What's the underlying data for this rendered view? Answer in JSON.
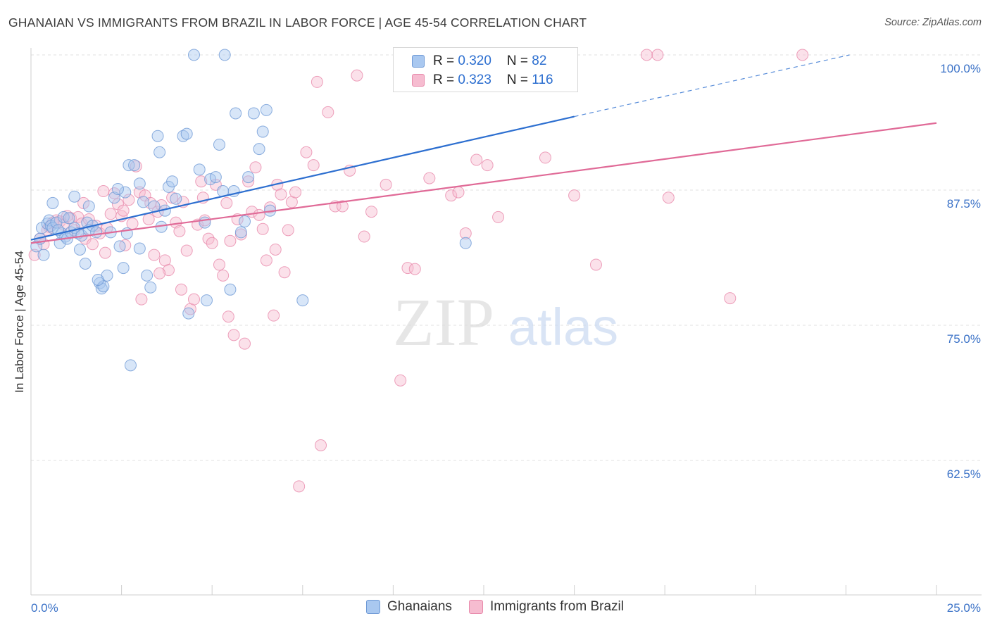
{
  "title": "GHANAIAN VS IMMIGRANTS FROM BRAZIL IN LABOR FORCE | AGE 45-54 CORRELATION CHART",
  "source": "Source: ZipAtlas.com",
  "watermark": {
    "zip": "ZIP",
    "atlas": "atlas"
  },
  "colors": {
    "blue_fill": "#a9c8f0",
    "blue_stroke": "#6f9ad6",
    "blue_line": "#2d6fd0",
    "pink_fill": "#f6bcd0",
    "pink_stroke": "#e88aab",
    "pink_line": "#e06a97",
    "axis_label": "#3b72c7",
    "grid": "#e2e2e2"
  },
  "legend": {
    "rows": [
      {
        "r_label": "R = ",
        "r_value": "0.320",
        "n_label": "N = ",
        "n_value": "82",
        "color": "blue"
      },
      {
        "r_label": "R = ",
        "r_value": "0.323",
        "n_label": "N = ",
        "n_value": "116",
        "color": "pink"
      }
    ]
  },
  "bottom_legend": [
    {
      "label": "Ghanaians",
      "color": "blue"
    },
    {
      "label": "Immigrants from Brazil",
      "color": "pink"
    }
  ],
  "chart_data": {
    "type": "scatter",
    "title": "GHANAIAN VS IMMIGRANTS FROM BRAZIL IN LABOR FORCE | AGE 45-54 CORRELATION CHART",
    "xlabel": "",
    "ylabel": "In Labor Force | Age 45-54",
    "xlim": [
      0,
      25
    ],
    "ylim": [
      51.5,
      101.5
    ],
    "x_tick_labels": [
      {
        "value": 0,
        "label": "0.0%"
      },
      {
        "value": 25,
        "label": "25.0%"
      }
    ],
    "y_tick_labels": [
      {
        "value": 100,
        "label": "100.0%"
      },
      {
        "value": 87.5,
        "label": "87.5%"
      },
      {
        "value": 75,
        "label": "75.0%"
      },
      {
        "value": 62.5,
        "label": "62.5%"
      }
    ],
    "grid": true,
    "series": [
      {
        "name": "Ghanaians",
        "color": "blue",
        "trend": {
          "x0": 0,
          "y0": 82.9,
          "x1": 15.0,
          "y1": 94.3,
          "dash_to_x": 22.6,
          "dash_to_y": 100.0
        },
        "points": [
          [
            0.15,
            82.3
          ],
          [
            0.25,
            83.0
          ],
          [
            0.3,
            84.0
          ],
          [
            0.35,
            81.5
          ],
          [
            0.45,
            84.4
          ],
          [
            0.5,
            84.7
          ],
          [
            0.55,
            84.2
          ],
          [
            0.6,
            84.0
          ],
          [
            0.7,
            84.5
          ],
          [
            0.8,
            82.6
          ],
          [
            0.85,
            83.5
          ],
          [
            0.9,
            85.0
          ],
          [
            0.95,
            83.2
          ],
          [
            1.0,
            83.0
          ],
          [
            1.05,
            84.9
          ],
          [
            1.1,
            83.6
          ],
          [
            1.2,
            84.0
          ],
          [
            1.3,
            83.5
          ],
          [
            1.35,
            82.0
          ],
          [
            1.4,
            83.3
          ],
          [
            1.5,
            80.7
          ],
          [
            1.55,
            84.5
          ],
          [
            1.6,
            83.8
          ],
          [
            1.7,
            84.2
          ],
          [
            1.8,
            83.6
          ],
          [
            1.9,
            78.9
          ],
          [
            1.95,
            78.4
          ],
          [
            2.0,
            78.6
          ],
          [
            2.1,
            79.6
          ],
          [
            2.2,
            83.6
          ],
          [
            2.3,
            86.8
          ],
          [
            2.45,
            82.3
          ],
          [
            2.55,
            80.3
          ],
          [
            2.6,
            87.3
          ],
          [
            2.7,
            89.8
          ],
          [
            2.75,
            71.3
          ],
          [
            2.85,
            89.8
          ],
          [
            3.0,
            88.1
          ],
          [
            3.1,
            86.4
          ],
          [
            3.2,
            79.6
          ],
          [
            3.3,
            78.5
          ],
          [
            3.4,
            86.0
          ],
          [
            3.5,
            92.5
          ],
          [
            3.55,
            91.0
          ],
          [
            3.6,
            84.1
          ],
          [
            3.7,
            85.6
          ],
          [
            3.8,
            87.8
          ],
          [
            3.9,
            88.3
          ],
          [
            4.0,
            86.7
          ],
          [
            4.2,
            92.5
          ],
          [
            4.3,
            92.7
          ],
          [
            4.35,
            76.1
          ],
          [
            4.5,
            100.0
          ],
          [
            4.65,
            89.4
          ],
          [
            4.8,
            84.5
          ],
          [
            4.85,
            77.3
          ],
          [
            4.95,
            88.5
          ],
          [
            5.1,
            88.7
          ],
          [
            5.2,
            91.7
          ],
          [
            5.3,
            87.4
          ],
          [
            5.35,
            100.0
          ],
          [
            5.5,
            78.3
          ],
          [
            5.6,
            87.4
          ],
          [
            5.65,
            94.6
          ],
          [
            5.8,
            83.6
          ],
          [
            5.9,
            84.6
          ],
          [
            6.0,
            88.7
          ],
          [
            6.15,
            94.6
          ],
          [
            6.3,
            91.3
          ],
          [
            6.4,
            92.9
          ],
          [
            6.5,
            94.9
          ],
          [
            6.6,
            85.6
          ],
          [
            7.5,
            77.3
          ],
          [
            12.0,
            82.6
          ],
          [
            1.2,
            86.9
          ],
          [
            1.6,
            86.0
          ],
          [
            2.4,
            87.6
          ],
          [
            0.6,
            86.3
          ],
          [
            0.75,
            83.8
          ],
          [
            3.0,
            82.1
          ],
          [
            1.85,
            79.2
          ],
          [
            2.65,
            83.5
          ]
        ]
      },
      {
        "name": "Immigrants from Brazil",
        "color": "pink",
        "trend": {
          "x0": 0,
          "y0": 82.6,
          "x1": 25.0,
          "y1": 93.7
        },
        "points": [
          [
            0.1,
            81.5
          ],
          [
            0.25,
            83.0
          ],
          [
            0.35,
            82.5
          ],
          [
            0.5,
            84.1
          ],
          [
            0.6,
            84.5
          ],
          [
            0.7,
            84.7
          ],
          [
            0.8,
            84.6
          ],
          [
            0.9,
            84.3
          ],
          [
            1.0,
            85.1
          ],
          [
            1.1,
            84.9
          ],
          [
            1.2,
            83.8
          ],
          [
            1.3,
            85.0
          ],
          [
            1.4,
            84.4
          ],
          [
            1.5,
            83.0
          ],
          [
            1.6,
            84.8
          ],
          [
            1.7,
            82.5
          ],
          [
            1.8,
            84.2
          ],
          [
            1.9,
            83.5
          ],
          [
            2.0,
            87.4
          ],
          [
            2.1,
            84.0
          ],
          [
            2.2,
            85.3
          ],
          [
            2.3,
            87.2
          ],
          [
            2.4,
            86.2
          ],
          [
            2.5,
            85.1
          ],
          [
            2.6,
            82.4
          ],
          [
            2.7,
            86.6
          ],
          [
            2.8,
            84.4
          ],
          [
            2.9,
            89.7
          ],
          [
            3.0,
            87.3
          ],
          [
            3.05,
            77.4
          ],
          [
            3.15,
            87.0
          ],
          [
            3.3,
            86.3
          ],
          [
            3.4,
            81.5
          ],
          [
            3.5,
            85.5
          ],
          [
            3.6,
            86.1
          ],
          [
            3.7,
            81.0
          ],
          [
            3.8,
            80.1
          ],
          [
            3.9,
            86.8
          ],
          [
            4.0,
            84.5
          ],
          [
            4.1,
            83.7
          ],
          [
            4.15,
            78.3
          ],
          [
            4.2,
            86.4
          ],
          [
            4.3,
            81.9
          ],
          [
            4.4,
            76.5
          ],
          [
            4.5,
            77.4
          ],
          [
            4.6,
            84.3
          ],
          [
            4.7,
            88.3
          ],
          [
            4.8,
            84.7
          ],
          [
            4.9,
            83.0
          ],
          [
            5.0,
            82.6
          ],
          [
            5.1,
            88.0
          ],
          [
            5.2,
            80.6
          ],
          [
            5.3,
            79.6
          ],
          [
            5.4,
            86.3
          ],
          [
            5.5,
            82.8
          ],
          [
            5.6,
            74.1
          ],
          [
            5.7,
            84.8
          ],
          [
            5.8,
            83.4
          ],
          [
            5.9,
            73.3
          ],
          [
            6.0,
            88.3
          ],
          [
            6.1,
            85.5
          ],
          [
            6.2,
            89.6
          ],
          [
            6.3,
            85.2
          ],
          [
            6.4,
            83.9
          ],
          [
            6.5,
            81.0
          ],
          [
            6.6,
            85.9
          ],
          [
            6.7,
            75.9
          ],
          [
            6.8,
            88.0
          ],
          [
            6.9,
            87.1
          ],
          [
            7.0,
            79.9
          ],
          [
            7.1,
            83.8
          ],
          [
            7.2,
            86.4
          ],
          [
            7.3,
            87.3
          ],
          [
            7.4,
            60.1
          ],
          [
            7.6,
            91.0
          ],
          [
            7.8,
            89.8
          ],
          [
            7.9,
            97.5
          ],
          [
            8.0,
            63.9
          ],
          [
            8.2,
            94.7
          ],
          [
            8.4,
            86.0
          ],
          [
            8.6,
            86.0
          ],
          [
            8.8,
            89.3
          ],
          [
            9.0,
            98.1
          ],
          [
            9.2,
            83.2
          ],
          [
            9.4,
            85.5
          ],
          [
            9.8,
            88.0
          ],
          [
            10.2,
            69.9
          ],
          [
            10.4,
            80.3
          ],
          [
            10.6,
            80.2
          ],
          [
            11.0,
            88.6
          ],
          [
            11.6,
            87.0
          ],
          [
            11.8,
            87.3
          ],
          [
            12.0,
            83.5
          ],
          [
            12.3,
            90.3
          ],
          [
            12.6,
            89.8
          ],
          [
            12.9,
            85.0
          ],
          [
            13.1,
            100.0
          ],
          [
            14.2,
            90.5
          ],
          [
            14.5,
            100.0
          ],
          [
            15.0,
            87.0
          ],
          [
            15.6,
            80.6
          ],
          [
            17.0,
            100.0
          ],
          [
            17.3,
            100.0
          ],
          [
            17.6,
            86.8
          ],
          [
            19.3,
            77.5
          ],
          [
            21.3,
            100.0
          ],
          [
            0.45,
            83.8
          ],
          [
            1.45,
            86.3
          ],
          [
            2.55,
            85.6
          ],
          [
            3.25,
            84.8
          ],
          [
            4.75,
            86.8
          ],
          [
            5.45,
            75.8
          ],
          [
            6.75,
            82.0
          ],
          [
            2.05,
            81.7
          ],
          [
            12.2,
            100.0
          ],
          [
            3.55,
            79.8
          ]
        ]
      }
    ]
  }
}
